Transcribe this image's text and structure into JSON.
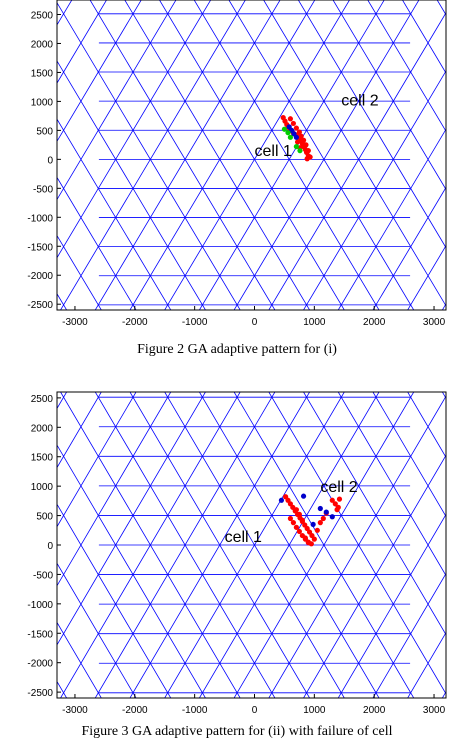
{
  "chart_data": [
    {
      "type": "scatter",
      "title": "",
      "xlabel": "",
      "ylabel": "",
      "xlim": [
        -3300,
        3200
      ],
      "ylim": [
        -2600,
        2750
      ],
      "xticks": [
        -3000,
        -2000,
        -1000,
        0,
        1000,
        2000,
        3000
      ],
      "yticks": [
        -2500,
        -2000,
        -1500,
        -1000,
        -500,
        0,
        500,
        1000,
        1500,
        2000,
        2500
      ],
      "grid": false,
      "colors": {
        "grid_lines": "#0000ff",
        "series_red": "#ff0000",
        "series_blue": "#0000cc",
        "series_green": "#00cc00"
      },
      "annotations": [
        {
          "text": "cell 2",
          "x": 1450,
          "y": 930
        },
        {
          "text": "cell 1",
          "x": 0,
          "y": 60
        }
      ],
      "series": [
        {
          "color": "#ff0000",
          "x": [
            480,
            510,
            540,
            570,
            600,
            650,
            700,
            730,
            760,
            800,
            820,
            850,
            870,
            900,
            600,
            650,
            700,
            750,
            780,
            820,
            860,
            900,
            930,
            880,
            720,
            760
          ],
          "y": [
            720,
            660,
            600,
            550,
            500,
            450,
            420,
            380,
            330,
            270,
            220,
            170,
            120,
            60,
            700,
            620,
            540,
            470,
            400,
            330,
            250,
            150,
            40,
            10,
            300,
            200
          ]
        },
        {
          "color": "#0000cc",
          "x": [
            580,
            620,
            660,
            700
          ],
          "y": [
            560,
            500,
            440,
            380
          ]
        },
        {
          "color": "#00cc00",
          "x": [
            500,
            560,
            600,
            700,
            760
          ],
          "y": [
            520,
            460,
            380,
            220,
            150
          ]
        }
      ],
      "caption": "Figure 2 GA adaptive pattern for (i)"
    },
    {
      "type": "scatter",
      "title": "",
      "xlabel": "",
      "ylabel": "",
      "xlim": [
        -3300,
        3200
      ],
      "ylim": [
        -2600,
        2600
      ],
      "xticks": [
        -3000,
        -2000,
        -1000,
        0,
        1000,
        2000,
        3000
      ],
      "yticks": [
        -2500,
        -2000,
        -1500,
        -1000,
        -500,
        0,
        500,
        1000,
        1500,
        2000,
        2500
      ],
      "grid": false,
      "annotations": [
        {
          "text": "cell 2",
          "x": 1100,
          "y": 900
        },
        {
          "text": "cell 1",
          "x": -500,
          "y": 50
        }
      ],
      "series": [
        {
          "color": "#ff0000",
          "x": [
            520,
            560,
            600,
            640,
            680,
            720,
            760,
            800,
            840,
            880,
            920,
            960,
            1000,
            1050,
            1100,
            1150,
            1200,
            600,
            650,
            700,
            750,
            800,
            850,
            900,
            950,
            700,
            750,
            800,
            850,
            900,
            1300,
            1350,
            1400,
            1380,
            1420
          ],
          "y": [
            820,
            760,
            700,
            640,
            580,
            520,
            460,
            400,
            340,
            280,
            220,
            160,
            100,
            250,
            380,
            450,
            540,
            450,
            380,
            300,
            230,
            160,
            100,
            50,
            20,
            600,
            520,
            420,
            120,
            40,
            760,
            700,
            640,
            600,
            780
          ]
        },
        {
          "color": "#0000cc",
          "x": [
            820,
            1100,
            1300,
            450,
            980,
            1200
          ],
          "y": [
            830,
            620,
            480,
            760,
            350,
            560
          ]
        }
      ],
      "caption": "Figure 3 GA adaptive pattern for (ii) with failure of cell"
    }
  ]
}
